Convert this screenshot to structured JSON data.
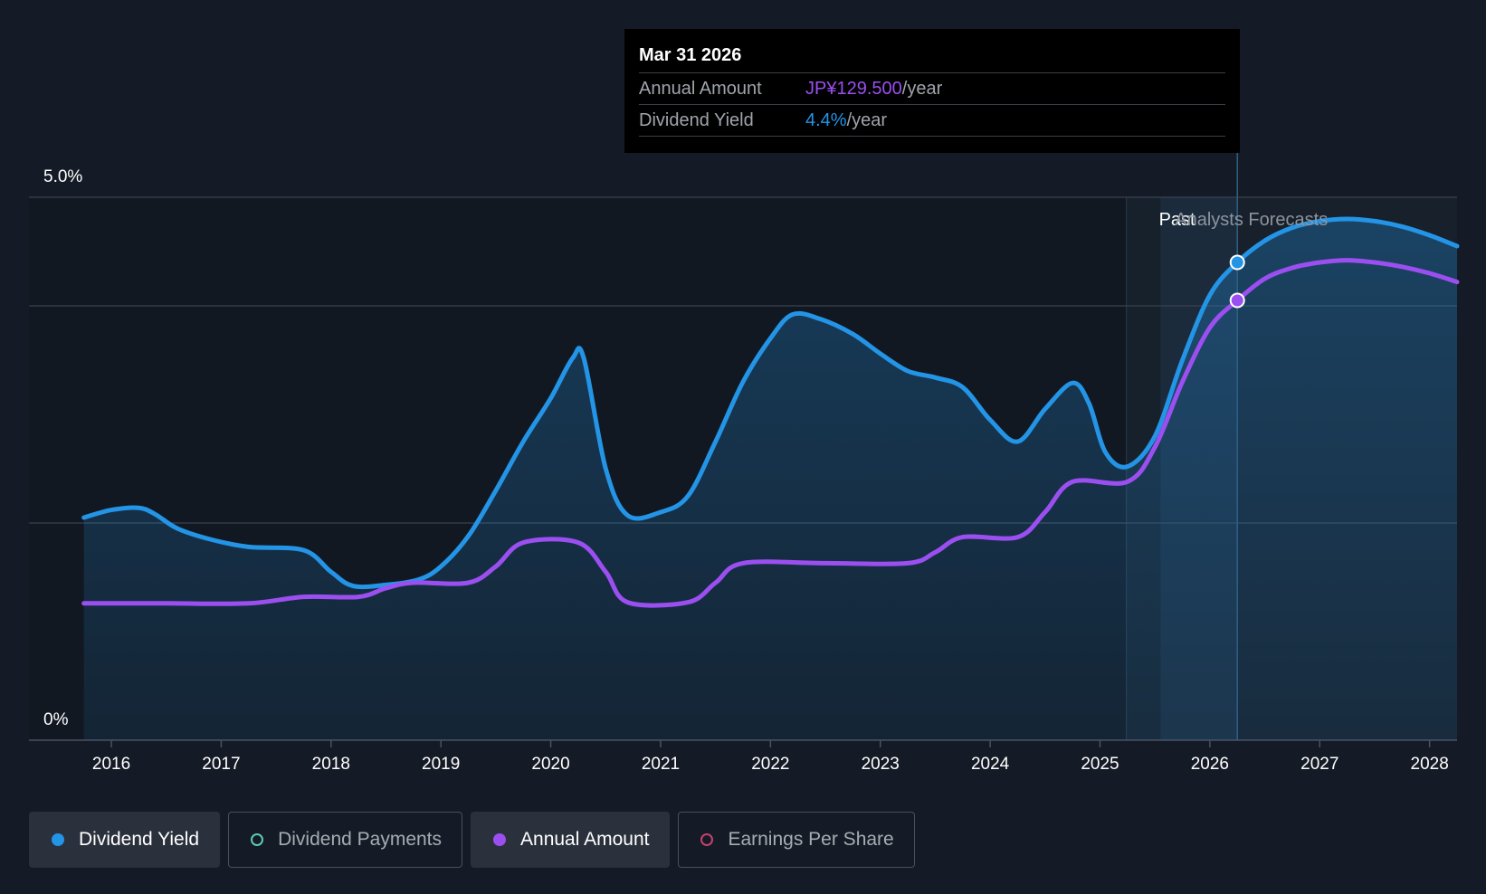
{
  "colors": {
    "background": "#151b26",
    "yield": "#2394e6",
    "annual": "#9b4ff0",
    "payments": "#5ec9b5",
    "eps": "#c2426f",
    "gridline": "#3a4150"
  },
  "chart_data": {
    "type": "line",
    "x_range": [
      2015.25,
      2028.25
    ],
    "y_axis": {
      "min": 0,
      "max": 5.0,
      "labels": [
        "5.0%",
        "0%"
      ]
    },
    "x_ticks": [
      "2016",
      "2017",
      "2018",
      "2019",
      "2020",
      "2021",
      "2022",
      "2023",
      "2024",
      "2025",
      "2026",
      "2027",
      "2028"
    ],
    "region_labels": {
      "past": "Past",
      "forecast": "Analysts Forecasts"
    },
    "past_end_x": 2025.24,
    "forecast_start_x": 2025.55,
    "cursor_x": 2026.25,
    "series": [
      {
        "name": "Dividend Yield",
        "unit": "%",
        "points": [
          [
            2015.75,
            2.05
          ],
          [
            2016.0,
            2.12
          ],
          [
            2016.25,
            2.14
          ],
          [
            2016.4,
            2.08
          ],
          [
            2016.6,
            1.95
          ],
          [
            2016.9,
            1.85
          ],
          [
            2017.25,
            1.78
          ],
          [
            2017.75,
            1.75
          ],
          [
            2018.0,
            1.55
          ],
          [
            2018.2,
            1.42
          ],
          [
            2018.5,
            1.43
          ],
          [
            2018.8,
            1.48
          ],
          [
            2019.0,
            1.6
          ],
          [
            2019.25,
            1.88
          ],
          [
            2019.5,
            2.3
          ],
          [
            2019.75,
            2.75
          ],
          [
            2020.0,
            3.15
          ],
          [
            2020.2,
            3.52
          ],
          [
            2020.3,
            3.52
          ],
          [
            2020.5,
            2.5
          ],
          [
            2020.7,
            2.07
          ],
          [
            2021.0,
            2.1
          ],
          [
            2021.25,
            2.25
          ],
          [
            2021.5,
            2.75
          ],
          [
            2021.75,
            3.3
          ],
          [
            2022.0,
            3.7
          ],
          [
            2022.2,
            3.92
          ],
          [
            2022.45,
            3.88
          ],
          [
            2022.75,
            3.74
          ],
          [
            2023.0,
            3.56
          ],
          [
            2023.25,
            3.4
          ],
          [
            2023.5,
            3.34
          ],
          [
            2023.75,
            3.25
          ],
          [
            2024.0,
            2.95
          ],
          [
            2024.25,
            2.75
          ],
          [
            2024.5,
            3.05
          ],
          [
            2024.75,
            3.29
          ],
          [
            2024.9,
            3.1
          ],
          [
            2025.05,
            2.65
          ],
          [
            2025.25,
            2.52
          ],
          [
            2025.5,
            2.8
          ],
          [
            2025.75,
            3.5
          ],
          [
            2026.0,
            4.1
          ],
          [
            2026.25,
            4.4
          ],
          [
            2026.5,
            4.6
          ],
          [
            2026.75,
            4.72
          ],
          [
            2027.0,
            4.78
          ],
          [
            2027.25,
            4.8
          ],
          [
            2027.5,
            4.78
          ],
          [
            2027.75,
            4.73
          ],
          [
            2028.0,
            4.65
          ],
          [
            2028.25,
            4.55
          ]
        ]
      },
      {
        "name": "Annual Amount",
        "unit": "JP¥",
        "points": [
          [
            2015.75,
            1.26
          ],
          [
            2016.5,
            1.26
          ],
          [
            2017.25,
            1.26
          ],
          [
            2017.75,
            1.32
          ],
          [
            2018.25,
            1.32
          ],
          [
            2018.5,
            1.4
          ],
          [
            2018.75,
            1.45
          ],
          [
            2019.25,
            1.45
          ],
          [
            2019.5,
            1.6
          ],
          [
            2019.75,
            1.82
          ],
          [
            2020.25,
            1.82
          ],
          [
            2020.5,
            1.55
          ],
          [
            2020.7,
            1.27
          ],
          [
            2021.25,
            1.27
          ],
          [
            2021.5,
            1.45
          ],
          [
            2021.75,
            1.63
          ],
          [
            2022.5,
            1.63
          ],
          [
            2023.25,
            1.63
          ],
          [
            2023.5,
            1.73
          ],
          [
            2023.75,
            1.87
          ],
          [
            2024.25,
            1.87
          ],
          [
            2024.5,
            2.1
          ],
          [
            2024.75,
            2.38
          ],
          [
            2025.25,
            2.38
          ],
          [
            2025.5,
            2.7
          ],
          [
            2025.75,
            3.3
          ],
          [
            2026.0,
            3.8
          ],
          [
            2026.25,
            4.05
          ],
          [
            2026.5,
            4.25
          ],
          [
            2026.75,
            4.35
          ],
          [
            2027.0,
            4.4
          ],
          [
            2027.25,
            4.42
          ],
          [
            2027.5,
            4.4
          ],
          [
            2027.75,
            4.36
          ],
          [
            2028.0,
            4.3
          ],
          [
            2028.25,
            4.22
          ]
        ]
      }
    ]
  },
  "tooltip": {
    "date": "Mar 31 2026",
    "rows": [
      {
        "label": "Annual Amount",
        "value": "JP¥129.500",
        "unit": "/year"
      },
      {
        "label": "Dividend Yield",
        "value": "4.4%",
        "unit": "/year"
      }
    ]
  },
  "legend": [
    {
      "label": "Dividend Yield",
      "active": true,
      "filled": true,
      "color": "#2394e6"
    },
    {
      "label": "Dividend Payments",
      "active": false,
      "filled": false,
      "color": "#5ec9b5"
    },
    {
      "label": "Annual Amount",
      "active": true,
      "filled": true,
      "color": "#9b4ff0"
    },
    {
      "label": "Earnings Per Share",
      "active": false,
      "filled": false,
      "color": "#c2426f"
    }
  ]
}
